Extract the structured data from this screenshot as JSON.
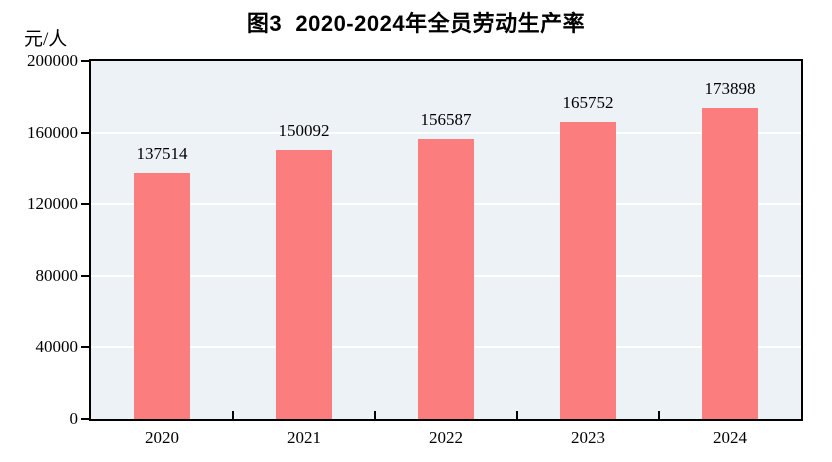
{
  "header": {
    "title": "图3  2020-2024年全员劳动生产率"
  },
  "y_axis": {
    "unit_label": "元/人"
  },
  "chart_data": {
    "type": "bar",
    "title": "图3 2020-2024年全员劳动生产率",
    "categories": [
      "2020",
      "2021",
      "2022",
      "2023",
      "2024"
    ],
    "values": [
      137514,
      150092,
      156587,
      165752,
      173898
    ],
    "data_labels": [
      "137514",
      "150092",
      "156587",
      "165752",
      "173898"
    ],
    "xlabel": "",
    "ylabel": "元/人",
    "ylim": [
      0,
      200000
    ],
    "yticks": [
      0,
      40000,
      80000,
      120000,
      160000,
      200000
    ],
    "grid": "horizontal, white lines on shaded plot area",
    "legend": "none",
    "colors": {
      "bar_fill": "#FB7D7D",
      "plot_background": "#ECF2F6",
      "gridline": "#FFFFFF",
      "axis": "#000000",
      "text": "#000000",
      "page_background": "#FFFFFF"
    }
  }
}
